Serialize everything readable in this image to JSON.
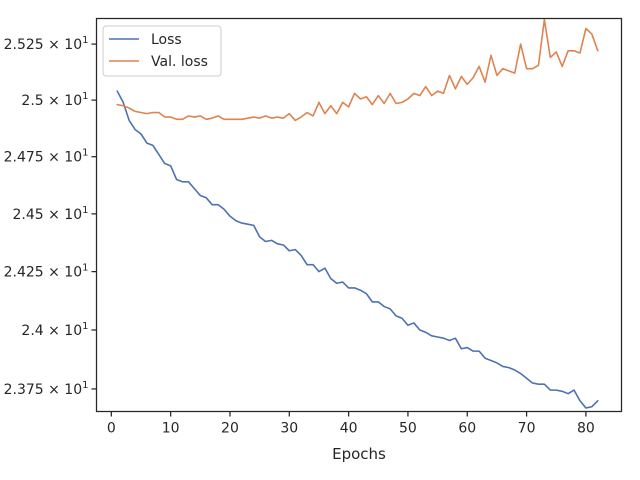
{
  "chart_data": {
    "type": "line",
    "title": "",
    "xlabel": "Epochs",
    "ylabel": "",
    "xlim": [
      -2.5,
      86.0
    ],
    "ylim": [
      23.655,
      25.365
    ],
    "x_ticks": [
      0,
      10,
      20,
      30,
      40,
      50,
      60,
      70,
      80
    ],
    "x_tick_labels": [
      "0",
      "10",
      "20",
      "30",
      "40",
      "50",
      "60",
      "70",
      "80"
    ],
    "y_ticks": [
      23.75,
      24.0,
      24.25,
      24.5,
      24.75,
      25.0,
      25.25
    ],
    "y_tick_labels": [
      {
        "mantissa": "2.375",
        "base": "10",
        "exponent": "1"
      },
      {
        "mantissa": "2.4",
        "base": "10",
        "exponent": "1"
      },
      {
        "mantissa": "2.425",
        "base": "10",
        "exponent": "1"
      },
      {
        "mantissa": "2.45",
        "base": "10",
        "exponent": "1"
      },
      {
        "mantissa": "2.475",
        "base": "10",
        "exponent": "1"
      },
      {
        "mantissa": "2.5",
        "base": "10",
        "exponent": "1"
      },
      {
        "mantissa": "2.525",
        "base": "10",
        "exponent": "1"
      }
    ],
    "y_scale": "log",
    "grid": false,
    "legend_position": "top-left",
    "x": [
      1,
      2,
      3,
      4,
      5,
      6,
      7,
      8,
      9,
      10,
      11,
      12,
      13,
      14,
      15,
      16,
      17,
      18,
      19,
      20,
      21,
      22,
      23,
      24,
      25,
      26,
      27,
      28,
      29,
      30,
      31,
      32,
      33,
      34,
      35,
      36,
      37,
      38,
      39,
      40,
      41,
      42,
      43,
      44,
      45,
      46,
      47,
      48,
      49,
      50,
      51,
      52,
      53,
      54,
      55,
      56,
      57,
      58,
      59,
      60,
      61,
      62,
      63,
      64,
      65,
      66,
      67,
      68,
      69,
      70,
      71,
      72,
      73,
      74,
      75,
      76,
      77,
      78,
      79,
      80,
      81,
      82
    ],
    "series": [
      {
        "name": "Loss",
        "color": "#4c72b0",
        "values": [
          25.04,
          24.99,
          24.91,
          24.87,
          24.85,
          24.81,
          24.8,
          24.76,
          24.72,
          24.71,
          24.65,
          24.64,
          24.64,
          24.61,
          24.58,
          24.57,
          24.54,
          24.54,
          24.52,
          24.49,
          24.47,
          24.46,
          24.455,
          24.45,
          24.4,
          24.38,
          24.385,
          24.37,
          24.365,
          24.34,
          24.345,
          24.32,
          24.28,
          24.28,
          24.25,
          24.265,
          24.22,
          24.2,
          24.205,
          24.18,
          24.18,
          24.17,
          24.155,
          24.12,
          24.12,
          24.1,
          24.09,
          24.06,
          24.05,
          24.02,
          24.03,
          24.0,
          23.99,
          23.975,
          23.97,
          23.965,
          23.955,
          23.965,
          23.92,
          23.925,
          23.91,
          23.91,
          23.88,
          23.87,
          23.86,
          23.845,
          23.84,
          23.83,
          23.815,
          23.795,
          23.775,
          23.77,
          23.77,
          23.745,
          23.745,
          23.74,
          23.73,
          23.745,
          23.7,
          23.67,
          23.675,
          23.7
        ]
      },
      {
        "name": "Val. loss",
        "color": "#dd8452",
        "values": [
          24.98,
          24.975,
          24.965,
          24.95,
          24.945,
          24.94,
          24.945,
          24.945,
          24.925,
          24.925,
          24.915,
          24.915,
          24.93,
          24.925,
          24.93,
          24.915,
          24.92,
          24.93,
          24.915,
          24.915,
          24.915,
          24.915,
          24.92,
          24.925,
          24.92,
          24.93,
          24.92,
          24.925,
          24.92,
          24.94,
          24.91,
          24.925,
          24.945,
          24.93,
          24.99,
          24.94,
          24.975,
          24.94,
          24.99,
          24.97,
          25.03,
          25.005,
          25.015,
          24.98,
          25.02,
          24.985,
          25.03,
          24.985,
          24.99,
          25.005,
          25.03,
          25.02,
          25.06,
          25.02,
          25.04,
          25.03,
          25.11,
          25.05,
          25.105,
          25.07,
          25.1,
          25.15,
          25.08,
          25.2,
          25.11,
          25.14,
          25.13,
          25.12,
          25.25,
          25.14,
          25.14,
          25.155,
          25.36,
          25.19,
          25.215,
          25.15,
          25.22,
          25.22,
          25.21,
          25.32,
          25.295,
          25.22
        ]
      }
    ]
  }
}
